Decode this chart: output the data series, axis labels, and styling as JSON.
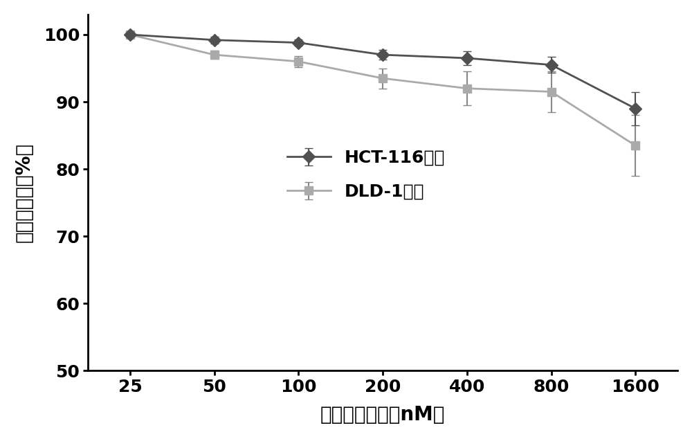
{
  "x": [
    25,
    50,
    100,
    200,
    400,
    800,
    1600
  ],
  "hct116_y": [
    100.0,
    99.2,
    98.8,
    97.0,
    96.5,
    95.5,
    89.0
  ],
  "hct116_yerr": [
    0.3,
    0.5,
    0.5,
    0.7,
    1.0,
    1.2,
    2.5
  ],
  "dld1_y": [
    100.0,
    97.0,
    96.0,
    93.5,
    92.0,
    91.5,
    83.5
  ],
  "dld1_yerr": [
    0.4,
    0.6,
    0.8,
    1.5,
    2.5,
    3.0,
    4.5
  ],
  "hct116_color": "#505050",
  "dld1_color": "#aaaaaa",
  "hct116_label": "HCT-116细胞",
  "dld1_label": "DLD-1细胞",
  "xlabel": "西地那非浓度（nM）",
  "ylabel": "细胞存活率（%）",
  "ylim": [
    50,
    103
  ],
  "yticks": [
    50,
    60,
    70,
    80,
    90,
    100
  ],
  "xtick_labels": [
    "25",
    "50",
    "100",
    "200",
    "400",
    "800",
    "1600"
  ],
  "background_color": "#ffffff",
  "capsize": 4,
  "linewidth": 2,
  "markersize": 9
}
